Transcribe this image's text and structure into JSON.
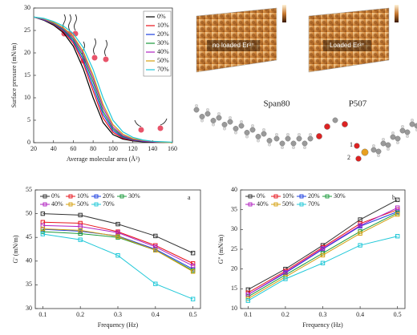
{
  "chart_data": [
    {
      "type": "line",
      "xlabel": "Average molecular area (Å²)",
      "ylabel": "Surface pressure (mN/m)",
      "x": [
        20,
        30,
        40,
        50,
        60,
        70,
        80,
        90,
        100,
        110,
        120,
        130,
        140,
        150,
        160
      ],
      "xlim": [
        20,
        160
      ],
      "xticks": [
        20,
        40,
        60,
        80,
        100,
        120,
        140,
        160
      ],
      "ylim": [
        0,
        30
      ],
      "yticks": [
        0,
        5,
        10,
        15,
        20,
        25,
        30
      ],
      "grid": false,
      "markers": false,
      "legend": "upper right",
      "series": [
        {
          "name": "0%",
          "color": "#000000",
          "values": [
            28,
            27.3,
            26.2,
            24.5,
            21.5,
            16.5,
            10,
            4.5,
            1.8,
            0.8,
            0.4,
            0.2,
            0.1,
            0.1,
            0
          ]
        },
        {
          "name": "10%",
          "color": "#e8141c",
          "values": [
            28,
            27.4,
            26.4,
            24.8,
            22.2,
            17.8,
            11.5,
            5.5,
            2.3,
            1,
            0.5,
            0.3,
            0.2,
            0.1,
            0
          ]
        },
        {
          "name": "20%",
          "color": "#1c3fe0",
          "values": [
            28,
            27.4,
            26.5,
            25,
            22.6,
            18.5,
            12.5,
            6.3,
            2.7,
            1.2,
            0.6,
            0.3,
            0.2,
            0.1,
            0
          ]
        },
        {
          "name": "30%",
          "color": "#1a9a3a",
          "values": [
            28,
            27.5,
            26.6,
            25.2,
            23,
            19.2,
            13.5,
            7,
            3.1,
            1.4,
            0.7,
            0.4,
            0.2,
            0.1,
            0
          ]
        },
        {
          "name": "40%",
          "color": "#b020c0",
          "values": [
            28,
            27.5,
            26.7,
            25.4,
            23.4,
            19.8,
            14.3,
            7.8,
            3.5,
            1.6,
            0.8,
            0.4,
            0.2,
            0.1,
            0
          ]
        },
        {
          "name": "50%",
          "color": "#d4a010",
          "values": [
            28,
            27.6,
            26.8,
            25.6,
            23.7,
            20.3,
            15,
            8.5,
            4,
            1.9,
            0.9,
            0.5,
            0.3,
            0.1,
            0
          ]
        },
        {
          "name": "70%",
          "color": "#20c8d8",
          "values": [
            28,
            27.7,
            27,
            26,
            24.3,
            21.2,
            16.3,
            10,
            5,
            2.4,
            1.2,
            0.6,
            0.3,
            0.2,
            0.1
          ]
        }
      ]
    },
    {
      "type": "line",
      "xlabel": "Frequency (Hz)",
      "ylabel": "G' (mN/m)",
      "panel_label": "a",
      "x": [
        0.1,
        0.2,
        0.3,
        0.4,
        0.5
      ],
      "xlim": [
        0.08,
        0.52
      ],
      "xticks": [
        0.1,
        0.2,
        0.3,
        0.4,
        0.5
      ],
      "ylim": [
        30,
        55
      ],
      "yticks": [
        30,
        35,
        40,
        45,
        50,
        55
      ],
      "grid": false,
      "markers": true,
      "legend": "upper left",
      "series": [
        {
          "name": "0%",
          "color": "#333333",
          "values": [
            50,
            49.7,
            47.8,
            45.3,
            41.7
          ]
        },
        {
          "name": "10%",
          "color": "#e8141c",
          "values": [
            48.2,
            48,
            46.2,
            43.3,
            39.5
          ]
        },
        {
          "name": "20%",
          "color": "#1c3fe0",
          "values": [
            46.7,
            46.3,
            45.3,
            42.5,
            38.3
          ]
        },
        {
          "name": "30%",
          "color": "#1a9a3a",
          "values": [
            46.2,
            45.8,
            45,
            42.3,
            38
          ]
        },
        {
          "name": "40%",
          "color": "#b020c0",
          "values": [
            47.5,
            47.3,
            46,
            43,
            39
          ]
        },
        {
          "name": "50%",
          "color": "#d4a010",
          "values": [
            46.8,
            46.5,
            45.2,
            42.3,
            37.8
          ]
        },
        {
          "name": "70%",
          "color": "#20c8d8",
          "values": [
            45.7,
            44.5,
            41.2,
            35.2,
            32
          ]
        }
      ]
    },
    {
      "type": "line",
      "xlabel": "Frequency (Hz)",
      "ylabel": "G'' (mN/m)",
      "panel_label": "b",
      "x": [
        0.1,
        0.2,
        0.3,
        0.4,
        0.5
      ],
      "xlim": [
        0.08,
        0.52
      ],
      "xticks": [
        0.1,
        0.2,
        0.3,
        0.4,
        0.5
      ],
      "ylim": [
        10,
        40
      ],
      "yticks": [
        10,
        15,
        20,
        25,
        30,
        35,
        40
      ],
      "grid": false,
      "markers": true,
      "legend": "upper left",
      "series": [
        {
          "name": "0%",
          "color": "#333333",
          "values": [
            14.8,
            20,
            26,
            32.5,
            37.5
          ]
        },
        {
          "name": "10%",
          "color": "#e8141c",
          "values": [
            14,
            19.5,
            25.5,
            31.5,
            35
          ]
        },
        {
          "name": "20%",
          "color": "#1c3fe0",
          "values": [
            13.5,
            19,
            25,
            30.8,
            34.5
          ]
        },
        {
          "name": "30%",
          "color": "#1a9a3a",
          "values": [
            13,
            18.5,
            24,
            29.5,
            34.2
          ]
        },
        {
          "name": "40%",
          "color": "#b020c0",
          "values": [
            13.5,
            19.2,
            25.2,
            31,
            35.5
          ]
        },
        {
          "name": "50%",
          "color": "#d4a010",
          "values": [
            12.5,
            18,
            23.5,
            29,
            33.8
          ]
        },
        {
          "name": "70%",
          "color": "#20c8d8",
          "values": [
            12,
            17.5,
            21.5,
            26,
            28.3
          ]
        }
      ]
    }
  ],
  "afm": {
    "left_label": "no loaded Er³⁺",
    "right_label": "Loaded Er³⁺"
  },
  "molecules": {
    "labels": [
      "Span80",
      "P507"
    ],
    "annotations": [
      "1",
      "2"
    ]
  }
}
